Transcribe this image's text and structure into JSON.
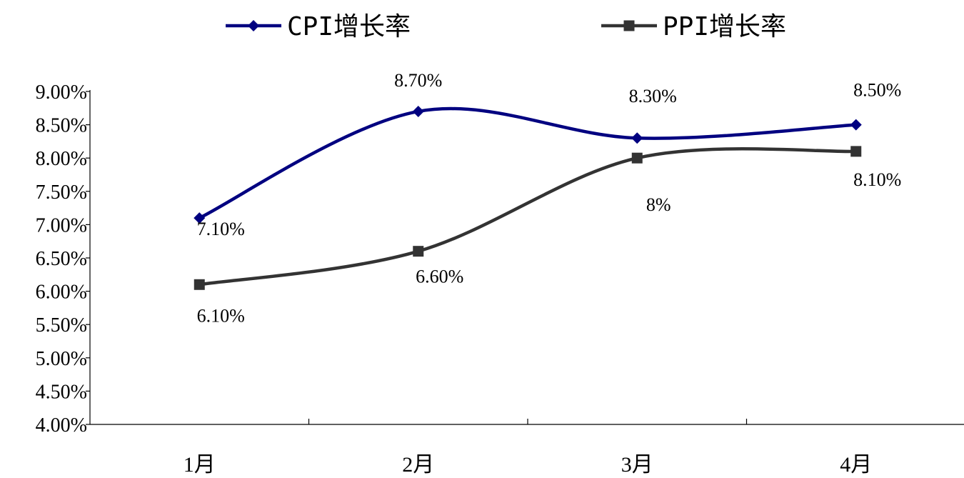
{
  "chart_data": {
    "type": "line",
    "categories": [
      "1月",
      "2月",
      "3月",
      "4月"
    ],
    "series": [
      {
        "name": "CPI增长率",
        "color": "#000080",
        "marker": "diamond",
        "values": [
          7.1,
          8.7,
          8.3,
          8.5
        ],
        "labels": [
          "7.10%",
          "8.70%",
          "8.30%",
          "8.50%"
        ]
      },
      {
        "name": "PPI增长率",
        "color": "#333333",
        "marker": "square",
        "values": [
          6.1,
          6.6,
          8.0,
          8.1
        ],
        "labels": [
          "6.10%",
          "6.60%",
          "8%",
          "8.10%"
        ]
      }
    ],
    "ylim": [
      4.0,
      9.0
    ],
    "y_ticks": [
      "4.00%",
      "4.50%",
      "5.00%",
      "5.50%",
      "6.00%",
      "6.50%",
      "7.00%",
      "7.50%",
      "8.00%",
      "8.50%",
      "9.00%"
    ],
    "grid": false,
    "legend_position": "top"
  }
}
